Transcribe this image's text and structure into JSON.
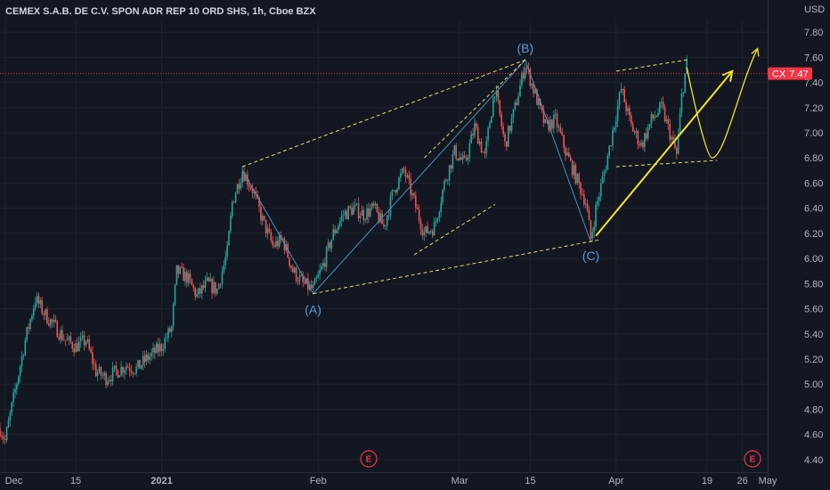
{
  "chart_data": {
    "type": "candlestick",
    "title": "CEMEX S.A.B. DE C.V. SPON ADR REP 10 ORD SHS, 1h, Cboe BZX",
    "currency": "USD",
    "symbol": "CX",
    "last_price_label": "7.47",
    "last_price": 7.47,
    "ylim": [
      4.3,
      7.9
    ],
    "y_ticks": [
      {
        "value": 7.8,
        "label": "7.80"
      },
      {
        "value": 7.6,
        "label": "7.60"
      },
      {
        "value": 7.4,
        "label": "7.40"
      },
      {
        "value": 7.2,
        "label": "7.20"
      },
      {
        "value": 7.0,
        "label": "7.00"
      },
      {
        "value": 6.8,
        "label": "6.80"
      },
      {
        "value": 6.6,
        "label": "6.60"
      },
      {
        "value": 6.4,
        "label": "6.40"
      },
      {
        "value": 6.2,
        "label": "6.20"
      },
      {
        "value": 6.0,
        "label": "6.00"
      },
      {
        "value": 5.8,
        "label": "5.80"
      },
      {
        "value": 5.6,
        "label": "5.60"
      },
      {
        "value": 5.4,
        "label": "5.40"
      },
      {
        "value": 5.2,
        "label": "5.20"
      },
      {
        "value": 5.0,
        "label": "5.00"
      },
      {
        "value": 4.8,
        "label": "4.80"
      },
      {
        "value": 4.6,
        "label": "4.60"
      },
      {
        "value": 4.4,
        "label": "4.40"
      }
    ],
    "xlim": [
      "2020-11-30",
      "2021-05-01"
    ],
    "x_ticks": [
      {
        "date": "2020-12-01",
        "label": "Dec"
      },
      {
        "date": "2020-12-15",
        "label": "15"
      },
      {
        "date": "2021-01-01",
        "label": "2021"
      },
      {
        "date": "2021-02-01",
        "label": "Feb"
      },
      {
        "date": "2021-03-01",
        "label": "Mar"
      },
      {
        "date": "2021-03-15",
        "label": "15"
      },
      {
        "date": "2021-04-01",
        "label": "Apr"
      },
      {
        "date": "2021-04-19",
        "label": "19"
      },
      {
        "date": "2021-04-26",
        "label": "26"
      },
      {
        "date": "2021-05-01",
        "label": "May"
      }
    ],
    "price_path": [
      [
        "2020-11-30",
        4.65
      ],
      [
        "2020-12-01",
        4.55
      ],
      [
        "2020-12-03",
        4.95
      ],
      [
        "2020-12-05",
        5.35
      ],
      [
        "2020-12-07",
        5.68
      ],
      [
        "2020-12-09",
        5.55
      ],
      [
        "2020-12-11",
        5.45
      ],
      [
        "2020-12-13",
        5.35
      ],
      [
        "2020-12-15",
        5.3
      ],
      [
        "2020-12-17",
        5.35
      ],
      [
        "2020-12-19",
        5.1
      ],
      [
        "2020-12-21",
        5.05
      ],
      [
        "2020-12-23",
        5.1
      ],
      [
        "2020-12-25",
        5.15
      ],
      [
        "2020-12-27",
        5.12
      ],
      [
        "2020-12-29",
        5.2
      ],
      [
        "2021-01-01",
        5.3
      ],
      [
        "2021-01-03",
        5.45
      ],
      [
        "2021-01-04",
        5.9
      ],
      [
        "2021-01-06",
        5.85
      ],
      [
        "2021-01-08",
        5.7
      ],
      [
        "2021-01-10",
        5.8
      ],
      [
        "2021-01-12",
        5.75
      ],
      [
        "2021-01-14",
        6.05
      ],
      [
        "2021-01-15",
        6.45
      ],
      [
        "2021-01-17",
        6.7
      ],
      [
        "2021-01-19",
        6.55
      ],
      [
        "2021-01-21",
        6.3
      ],
      [
        "2021-01-23",
        6.1
      ],
      [
        "2021-01-25",
        6.15
      ],
      [
        "2021-01-27",
        5.9
      ],
      [
        "2021-01-29",
        5.8
      ],
      [
        "2021-01-31",
        5.75
      ],
      [
        "2021-02-02",
        5.95
      ],
      [
        "2021-02-04",
        6.2
      ],
      [
        "2021-02-06",
        6.35
      ],
      [
        "2021-02-08",
        6.4
      ],
      [
        "2021-02-10",
        6.35
      ],
      [
        "2021-02-12",
        6.4
      ],
      [
        "2021-02-14",
        6.25
      ],
      [
        "2021-02-16",
        6.55
      ],
      [
        "2021-02-18",
        6.7
      ],
      [
        "2021-02-20",
        6.45
      ],
      [
        "2021-02-22",
        6.2
      ],
      [
        "2021-02-24",
        6.25
      ],
      [
        "2021-02-26",
        6.6
      ],
      [
        "2021-02-28",
        6.85
      ],
      [
        "2021-03-02",
        6.75
      ],
      [
        "2021-03-04",
        7.05
      ],
      [
        "2021-03-06",
        6.8
      ],
      [
        "2021-03-07",
        7.1
      ],
      [
        "2021-03-08",
        7.35
      ],
      [
        "2021-03-10",
        6.9
      ],
      [
        "2021-03-12",
        7.2
      ],
      [
        "2021-03-14",
        7.55
      ],
      [
        "2021-03-16",
        7.3
      ],
      [
        "2021-03-18",
        7.05
      ],
      [
        "2021-03-20",
        7.1
      ],
      [
        "2021-03-22",
        6.85
      ],
      [
        "2021-03-24",
        6.65
      ],
      [
        "2021-03-26",
        6.45
      ],
      [
        "2021-03-27",
        6.15
      ],
      [
        "2021-03-28",
        6.4
      ],
      [
        "2021-03-30",
        6.75
      ],
      [
        "2021-04-01",
        7.15
      ],
      [
        "2021-04-02",
        7.35
      ],
      [
        "2021-04-04",
        7.05
      ],
      [
        "2021-04-06",
        6.9
      ],
      [
        "2021-04-08",
        7.1
      ],
      [
        "2021-04-10",
        7.2
      ],
      [
        "2021-04-12",
        6.95
      ],
      [
        "2021-04-13",
        6.82
      ],
      [
        "2021-04-14",
        7.3
      ],
      [
        "2021-04-15",
        7.55
      ],
      [
        "2021-04-15",
        7.47
      ]
    ],
    "wave_labels": [
      {
        "label": "(A)",
        "date": "2021-01-31",
        "value": 5.7,
        "place": "below"
      },
      {
        "label": "(B)",
        "date": "2021-03-14",
        "value": 7.58,
        "place": "above"
      },
      {
        "label": "(C)",
        "date": "2021-03-27",
        "value": 6.13,
        "place": "below"
      }
    ],
    "earnings_markers": [
      {
        "date": "2021-02-11",
        "label": "E"
      },
      {
        "date": "2021-04-28",
        "label": "E"
      }
    ],
    "annotations": {
      "abc_path": [
        [
          "2021-01-17",
          6.7
        ],
        [
          "2021-01-31",
          5.72
        ],
        [
          "2021-03-14",
          7.58
        ],
        [
          "2021-03-27",
          6.13
        ]
      ],
      "channel_lines": [
        [
          [
            "2021-01-17",
            6.73
          ],
          [
            "2021-03-14",
            7.58
          ]
        ],
        [
          [
            "2021-01-31",
            5.72
          ],
          [
            "2021-03-29",
            6.15
          ]
        ],
        [
          [
            "2021-02-22",
            6.8
          ],
          [
            "2021-03-14",
            7.58
          ]
        ],
        [
          [
            "2021-02-20",
            6.03
          ],
          [
            "2021-03-08",
            6.43
          ]
        ],
        [
          [
            "2021-04-01",
            7.49
          ],
          [
            "2021-04-15",
            7.58
          ]
        ],
        [
          [
            "2021-04-01",
            6.73
          ],
          [
            "2021-04-21",
            6.78
          ]
        ]
      ],
      "trend_arrow": [
        [
          "2021-03-28",
          6.18
        ],
        [
          "2021-04-24",
          7.49
        ]
      ],
      "projection_path": [
        [
          "2021-04-15",
          7.52
        ],
        [
          "2021-04-20",
          6.8
        ],
        [
          "2021-04-29",
          7.67
        ]
      ]
    }
  }
}
